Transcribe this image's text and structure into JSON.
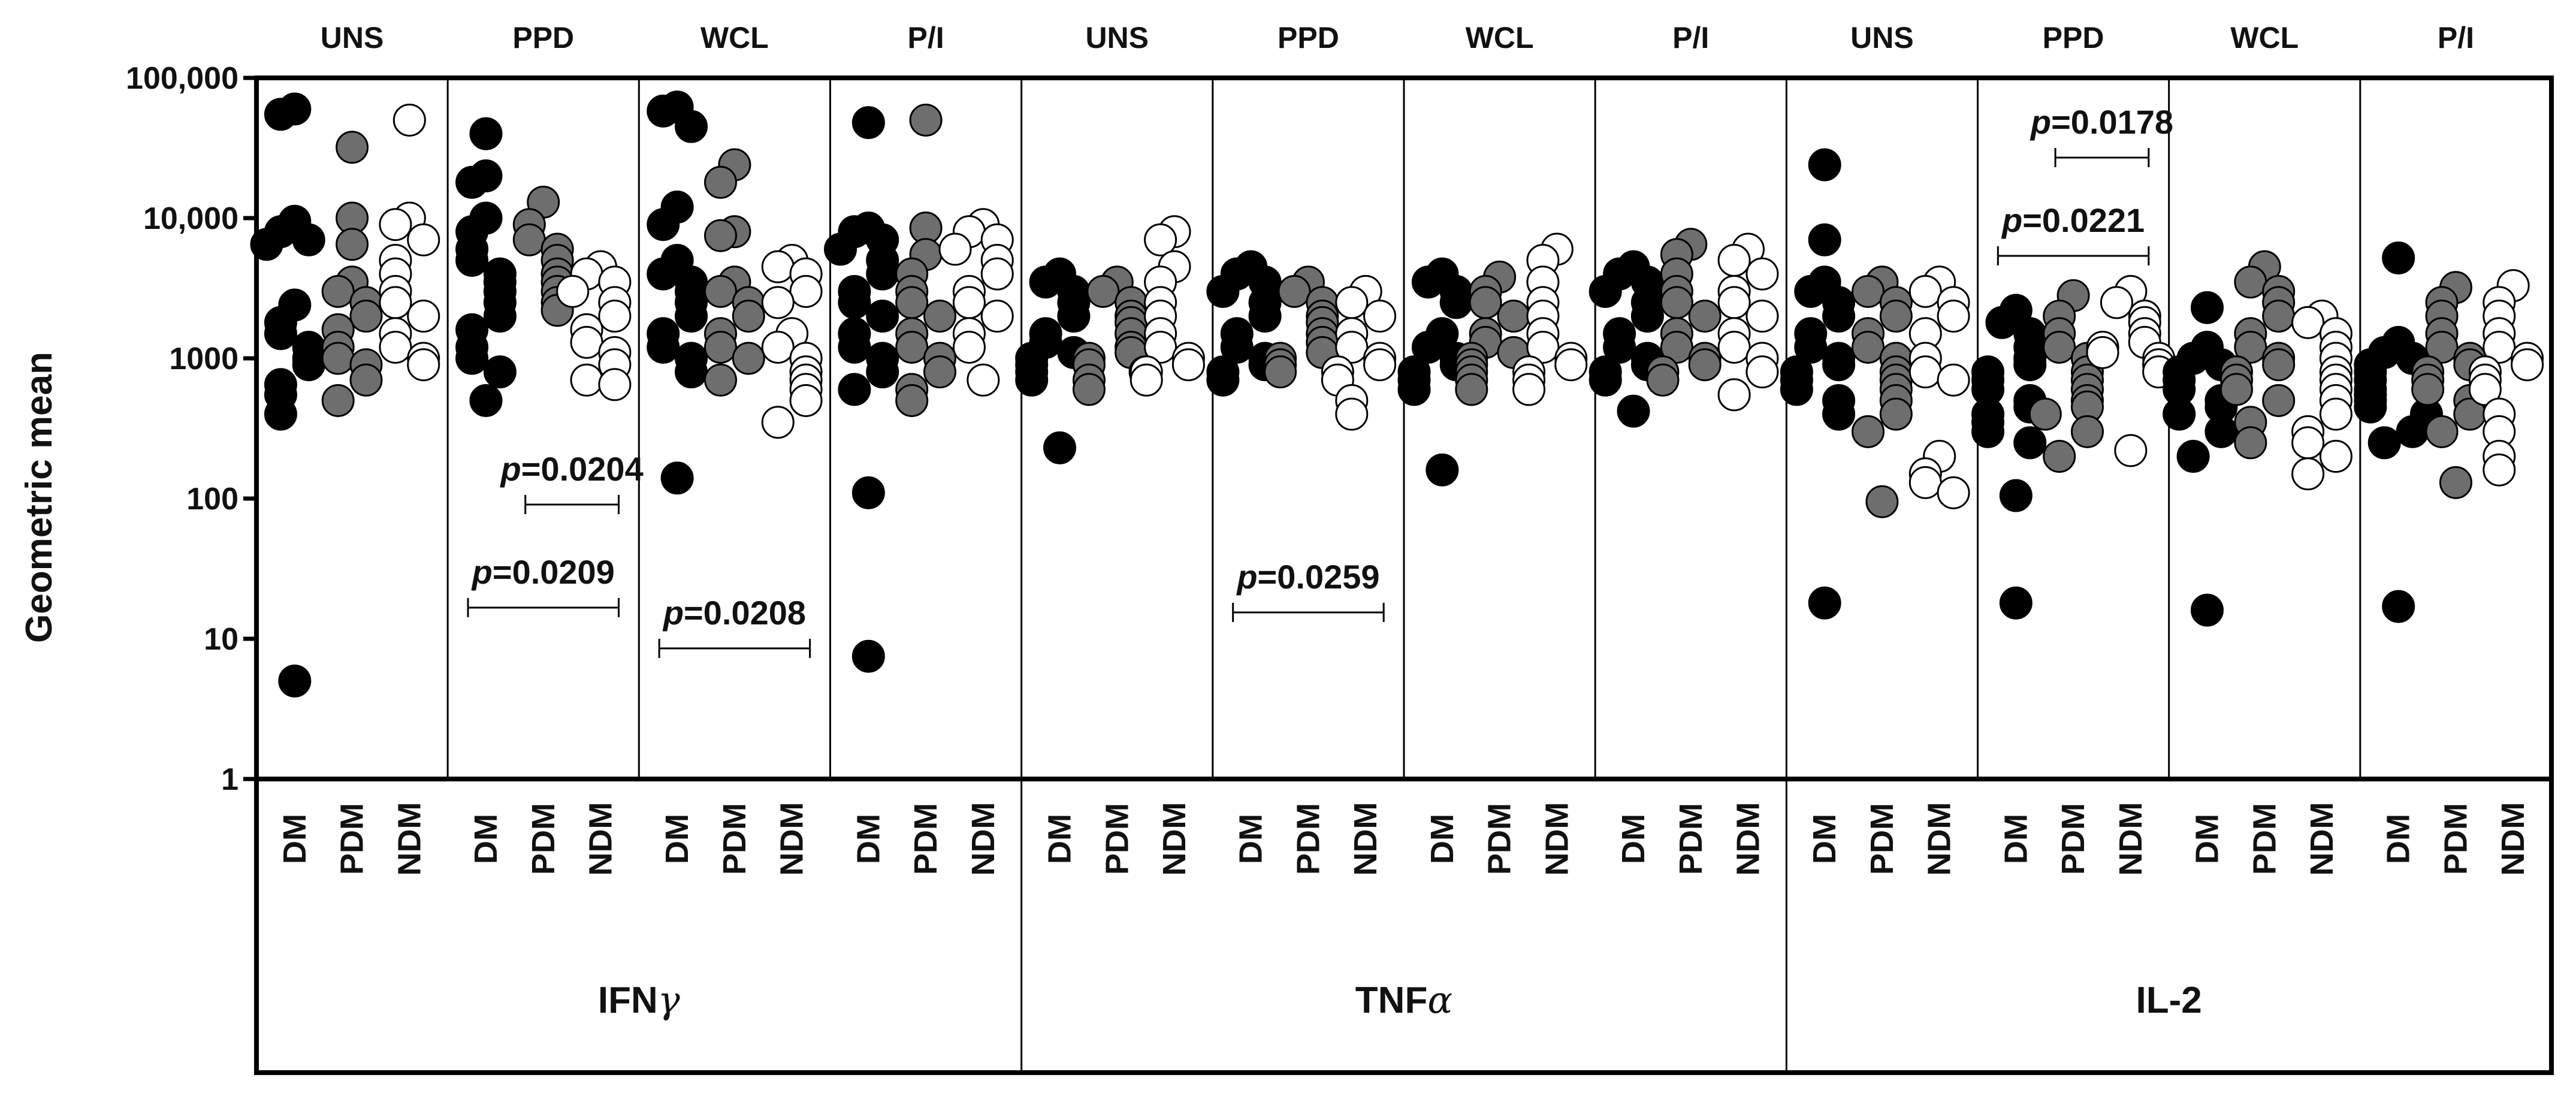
{
  "chart_data": {
    "type": "scatter",
    "ylabel": "Geometric mean",
    "yscale": "log",
    "ylim": [
      1,
      100000
    ],
    "y_ticks": [
      {
        "value": 1,
        "label": "1"
      },
      {
        "value": 10,
        "label": "10"
      },
      {
        "value": 100,
        "label": "100"
      },
      {
        "value": 1000,
        "label": "1000"
      },
      {
        "value": 10000,
        "label": "10,000"
      },
      {
        "value": 100000,
        "label": "100,000"
      }
    ],
    "groups": [
      "DM",
      "PDM",
      "NDM"
    ],
    "group_colors": {
      "DM": "#000000",
      "PDM": "#6e6e6e",
      "NDM": "#ffffff"
    },
    "cytokines": [
      {
        "name": "IFNγ",
        "label_main": "IFN",
        "label_greek": "γ",
        "panels": [
          {
            "stim": "UNS",
            "DM": [
              60000,
              55000,
              9500,
              8000,
              7000,
              6500,
              2400,
              1800,
              1500,
              1200,
              1000,
              900,
              650,
              550,
              400,
              5
            ],
            "PDM": [
              32000,
              10000,
              6500,
              3500,
              3000,
              2500,
              2000,
              1600,
              1200,
              1000,
              900,
              700,
              500
            ],
            "NDM": [
              50000,
              10000,
              9000,
              7000,
              5000,
              4000,
              3000,
              2500,
              2000,
              1500,
              1200,
              1000,
              900
            ]
          },
          {
            "stim": "PPD",
            "DM": [
              40000,
              20000,
              18000,
              10000,
              8000,
              6000,
              5000,
              4000,
              3500,
              3000,
              2500,
              2000,
              1600,
              1200,
              1000,
              800,
              500
            ],
            "PDM": [
              13000,
              9000,
              7000,
              6000,
              5000,
              4000,
              3500,
              3000,
              2500,
              2200
            ],
            "NDM": [
              4500,
              4000,
              3500,
              3000,
              2500,
              2000,
              1600,
              1300,
              1100,
              900,
              700,
              650
            ]
          },
          {
            "stim": "WCL",
            "DM": [
              62000,
              58000,
              45000,
              12000,
              9000,
              5000,
              4000,
              3500,
              3000,
              2500,
              2000,
              1500,
              1200,
              1000,
              800,
              140
            ],
            "PDM": [
              24000,
              18000,
              8000,
              7500,
              3500,
              3000,
              2500,
              2000,
              1500,
              1200,
              1000,
              700
            ],
            "NDM": [
              5000,
              4500,
              4000,
              3000,
              2500,
              1500,
              1200,
              1000,
              800,
              700,
              600,
              500,
              350
            ]
          },
          {
            "stim": "P/I",
            "DM": [
              48000,
              8500,
              8000,
              7000,
              6000,
              5000,
              4000,
              3000,
              2500,
              2000,
              1500,
              1200,
              1000,
              800,
              600,
              110,
              7.5
            ],
            "PDM": [
              50000,
              8500,
              5500,
              4000,
              3000,
              2500,
              2000,
              1500,
              1200,
              1000,
              800,
              600,
              500
            ],
            "NDM": [
              9000,
              8000,
              7000,
              6000,
              5000,
              4000,
              3000,
              2500,
              2000,
              1500,
              1200,
              700
            ]
          }
        ],
        "comparisons": [
          {
            "stim": "PPD",
            "from": "PDM",
            "to": "NDM",
            "p_label": "p",
            "p_value": "=0.0204"
          },
          {
            "stim": "PPD",
            "from": "DM",
            "to": "NDM",
            "p_label": "p",
            "p_value": "=0.0209"
          },
          {
            "stim": "WCL",
            "from": "DM",
            "to": "NDM",
            "p_label": "p",
            "p_value": "=0.0208"
          }
        ]
      },
      {
        "name": "TNFα",
        "label_main": "TNF",
        "label_greek": "α",
        "panels": [
          {
            "stim": "UNS",
            "DM": [
              4000,
              3500,
              3000,
              2500,
              2000,
              1500,
              1300,
              1100,
              1000,
              900,
              800,
              700,
              230
            ],
            "PDM": [
              3500,
              3000,
              2500,
              2000,
              1800,
              1500,
              1200,
              1100,
              1000,
              900,
              800,
              700,
              600
            ],
            "NDM": [
              8000,
              7000,
              4500,
              3500,
              2500,
              2000,
              1500,
              1200,
              1000,
              900,
              800,
              700
            ]
          },
          {
            "stim": "PPD",
            "DM": [
              4500,
              4000,
              3500,
              3000,
              2500,
              2000,
              1500,
              1200,
              1000,
              900,
              800,
              700
            ],
            "PDM": [
              3500,
              3000,
              2500,
              2000,
              1800,
              1500,
              1300,
              1100,
              1000,
              900,
              800
            ],
            "NDM": [
              3000,
              2500,
              2000,
              1500,
              1200,
              1000,
              900,
              800,
              700,
              500,
              400
            ]
          },
          {
            "stim": "WCL",
            "DM": [
              4000,
              3500,
              3000,
              2500,
              1500,
              1200,
              1000,
              900,
              800,
              700,
              600,
              160
            ],
            "PDM": [
              3800,
              3000,
              2500,
              2000,
              1500,
              1300,
              1100,
              1000,
              900,
              800,
              700,
              600
            ],
            "NDM": [
              6000,
              5000,
              3500,
              2500,
              2000,
              1500,
              1200,
              1000,
              900,
              800,
              700,
              600
            ]
          },
          {
            "stim": "P/I",
            "DM": [
              4500,
              4000,
              3500,
              3000,
              2500,
              2000,
              1500,
              1200,
              1000,
              900,
              800,
              700,
              420
            ],
            "PDM": [
              6500,
              5500,
              4000,
              3000,
              2500,
              2000,
              1500,
              1200,
              1000,
              900,
              800,
              700
            ],
            "NDM": [
              6000,
              5000,
              4000,
              3000,
              2500,
              2000,
              1500,
              1200,
              1000,
              800,
              550
            ]
          }
        ],
        "comparisons": [
          {
            "stim": "PPD",
            "from": "DM",
            "to": "NDM",
            "p_label": "p",
            "p_value": "=0.0259"
          }
        ]
      },
      {
        "name": "IL-2",
        "label_main": "IL-2",
        "label_greek": "",
        "panels": [
          {
            "stim": "UNS",
            "DM": [
              24000,
              7000,
              3500,
              3000,
              2500,
              2000,
              1500,
              1200,
              1000,
              900,
              800,
              700,
              600,
              500,
              400,
              18
            ],
            "PDM": [
              3500,
              3000,
              2500,
              2000,
              1500,
              1200,
              1000,
              800,
              700,
              600,
              500,
              400,
              300,
              95
            ],
            "NDM": [
              3500,
              3000,
              2500,
              2000,
              1500,
              1000,
              800,
              700,
              200,
              150,
              130,
              110
            ]
          },
          {
            "stim": "PPD",
            "DM": [
              2200,
              1800,
              1500,
              1200,
              1000,
              900,
              800,
              700,
              600,
              500,
              450,
              400,
              350,
              300,
              250,
              105,
              18
            ],
            "PDM": [
              2800,
              2000,
              1500,
              1200,
              1000,
              800,
              700,
              600,
              500,
              450,
              400,
              300,
              200
            ],
            "NDM": [
              3000,
              2500,
              2000,
              1800,
              1500,
              1300,
              1200,
              1100,
              1000,
              900,
              800,
              220
            ]
          },
          {
            "stim": "WCL",
            "DM": [
              2300,
              1200,
              1000,
              900,
              800,
              700,
              600,
              500,
              450,
              400,
              300,
              200,
              16
            ],
            "PDM": [
              4500,
              3500,
              3000,
              2500,
              2000,
              1500,
              1200,
              1000,
              900,
              800,
              700,
              600,
              500,
              350,
              250
            ],
            "NDM": [
              2000,
              1800,
              1500,
              1200,
              1000,
              800,
              700,
              600,
              500,
              400,
              300,
              250,
              200,
              150
            ]
          },
          {
            "stim": "P/I",
            "DM": [
              5200,
              1300,
              1100,
              1000,
              900,
              800,
              700,
              600,
              550,
              500,
              450,
              400,
              300,
              250,
              17
            ],
            "PDM": [
              3200,
              2500,
              2000,
              1500,
              1200,
              1000,
              900,
              800,
              700,
              600,
              500,
              400,
              300,
              130
            ],
            "NDM": [
              3300,
              2500,
              2000,
              1500,
              1200,
              1000,
              900,
              800,
              700,
              600,
              400,
              300,
              200,
              160
            ]
          }
        ],
        "comparisons": [
          {
            "stim": "PPD",
            "from": "PDM",
            "to": "NDM",
            "p_label": "p",
            "p_value": "=0.0178"
          },
          {
            "stim": "PPD",
            "from": "DM",
            "to": "NDM",
            "p_label": "p",
            "p_value": "=0.0221"
          }
        ]
      }
    ]
  }
}
